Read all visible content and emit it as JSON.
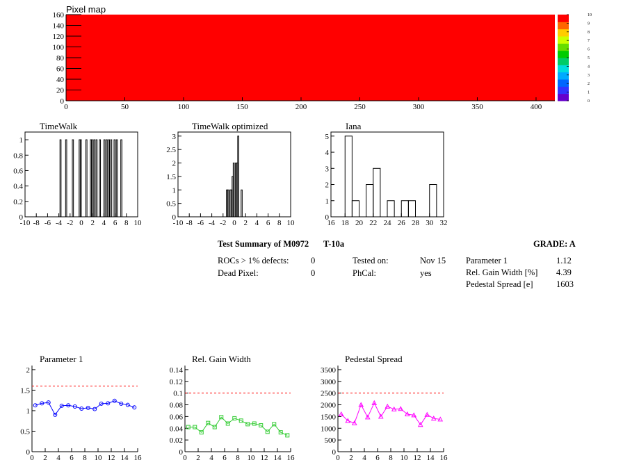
{
  "pixel_map": {
    "title": "Pixel map",
    "fill_color": "#ff0000",
    "palette_colors": [
      "#6600cc",
      "#3333ff",
      "#0066ff",
      "#00aaff",
      "#00dddd",
      "#00cc66",
      "#00cc00",
      "#66dd00",
      "#ccff00",
      "#ffcc00",
      "#ff6600",
      "#ff0000"
    ]
  },
  "summary": {
    "title": "Test Summary of M0972",
    "test": "T-10a",
    "grade": "GRADE:  A",
    "rows_left": [
      {
        "label": "ROCs > 1% defects:",
        "value": "0"
      },
      {
        "label": "Dead Pixel:",
        "value": "0"
      }
    ],
    "rows_mid": [
      {
        "label": "Tested on:",
        "value": "Nov 15"
      },
      {
        "label": "PhCal:",
        "value": "yes"
      }
    ],
    "rows_right": [
      {
        "label": "Parameter 1",
        "value": "1.12"
      },
      {
        "label": "Rel. Gain Width [%]",
        "value": "4.39"
      },
      {
        "label": "Pedestal Spread [e]",
        "value": "1603"
      }
    ]
  },
  "chart_data": [
    {
      "type": "heatmap",
      "title": "Pixel map",
      "xlim": [
        0,
        416
      ],
      "ylim": [
        0,
        160
      ],
      "xticks": [
        0,
        50,
        100,
        150,
        200,
        250,
        300,
        350,
        400
      ],
      "yticks": [
        0,
        20,
        40,
        60,
        80,
        100,
        120,
        140,
        160
      ],
      "uniform_value": 10,
      "color_scale": {
        "min": 0,
        "max": 10,
        "ticks": [
          0,
          1,
          2,
          3,
          4,
          5,
          6,
          7,
          8,
          9,
          10
        ]
      }
    },
    {
      "type": "bar",
      "title": "TimeWalk",
      "xlim": [
        -10,
        10
      ],
      "ylim": [
        0,
        1.1
      ],
      "xticks": [
        -10,
        -8,
        -6,
        -4,
        -2,
        0,
        2,
        4,
        6,
        8,
        10
      ],
      "yticks": [
        0,
        0.2,
        0.4,
        0.6,
        0.8,
        1
      ],
      "ytick_labels": [
        "0",
        "0.2",
        "0.4",
        "0.6",
        "0.8",
        "1"
      ],
      "bin_width": 0.2,
      "bins": [
        [
          -3.8,
          1
        ],
        [
          -2.8,
          1
        ],
        [
          -1.6,
          1
        ],
        [
          -0.4,
          1
        ],
        [
          -0.2,
          1
        ],
        [
          0.8,
          1
        ],
        [
          1.6,
          1
        ],
        [
          1.8,
          1
        ],
        [
          2.2,
          1
        ],
        [
          2.6,
          1
        ],
        [
          3.2,
          1
        ],
        [
          4.0,
          1
        ],
        [
          4.4,
          1
        ],
        [
          4.8,
          1
        ],
        [
          5.2,
          1
        ],
        [
          5.8,
          1
        ],
        [
          6.2,
          1
        ],
        [
          7.0,
          1
        ]
      ]
    },
    {
      "type": "bar",
      "title": "TimeWalk optimized",
      "xlim": [
        -10,
        10
      ],
      "ylim": [
        0,
        3.15
      ],
      "xticks": [
        -10,
        -8,
        -6,
        -4,
        -2,
        0,
        2,
        4,
        6,
        8,
        10
      ],
      "yticks": [
        0,
        0.5,
        1,
        1.5,
        2,
        2.5,
        3
      ],
      "ytick_labels": [
        "0",
        "0.5",
        "1",
        "1.5",
        "2",
        "2.5",
        "3"
      ],
      "bin_width": 0.2,
      "bins": [
        [
          -1.4,
          1
        ],
        [
          -1.2,
          1
        ],
        [
          -0.8,
          1
        ],
        [
          -0.6,
          1
        ],
        [
          -0.4,
          1.5
        ],
        [
          -0.2,
          2
        ],
        [
          0.2,
          2
        ],
        [
          0.4,
          2
        ],
        [
          0.6,
          3
        ],
        [
          1.2,
          1
        ]
      ]
    },
    {
      "type": "bar",
      "title": "Iana",
      "xlim": [
        16,
        32
      ],
      "ylim": [
        0,
        5.25
      ],
      "xticks": [
        16,
        18,
        20,
        22,
        24,
        26,
        28,
        30,
        32
      ],
      "yticks": [
        0,
        1,
        2,
        3,
        4,
        5
      ],
      "ytick_labels": [
        "0",
        "1",
        "2",
        "3",
        "4",
        "5"
      ],
      "bin_width": 1,
      "bins": [
        [
          18,
          5
        ],
        [
          19,
          1
        ],
        [
          20,
          0
        ],
        [
          21,
          2
        ],
        [
          22,
          3
        ],
        [
          23,
          0
        ],
        [
          24,
          1
        ],
        [
          25,
          0
        ],
        [
          26,
          1
        ],
        [
          27,
          1
        ],
        [
          28,
          0
        ],
        [
          29,
          0
        ],
        [
          30,
          2
        ]
      ]
    },
    {
      "type": "line",
      "title": "Parameter 1",
      "xlim": [
        0,
        16
      ],
      "ylim": [
        0,
        2.1
      ],
      "xticks": [
        0,
        2,
        4,
        6,
        8,
        10,
        12,
        14,
        16
      ],
      "yticks": [
        0,
        0.5,
        1,
        1.5,
        2
      ],
      "ytick_labels": [
        "0",
        "0.5",
        "1",
        "1.5",
        "2"
      ],
      "threshold": 1.6,
      "marker": "circle",
      "color": "#0000ff",
      "x": [
        0.5,
        1.5,
        2.5,
        3.5,
        4.5,
        5.5,
        6.5,
        7.5,
        8.5,
        9.5,
        10.5,
        11.5,
        12.5,
        13.5,
        14.5,
        15.5
      ],
      "y": [
        1.13,
        1.18,
        1.2,
        0.9,
        1.12,
        1.13,
        1.1,
        1.05,
        1.07,
        1.04,
        1.17,
        1.18,
        1.24,
        1.17,
        1.14,
        1.08
      ]
    },
    {
      "type": "line",
      "title": "Rel. Gain Width",
      "xlim": [
        0,
        16
      ],
      "ylim": [
        0,
        0.147
      ],
      "xticks": [
        0,
        2,
        4,
        6,
        8,
        10,
        12,
        14,
        16
      ],
      "yticks": [
        0,
        0.02,
        0.04,
        0.06,
        0.08,
        0.1,
        0.12,
        0.14
      ],
      "ytick_labels": [
        "0",
        "0.02",
        "0.04",
        "0.06",
        "0.08",
        "0.1",
        "0.12",
        "0.14"
      ],
      "threshold": 0.1,
      "marker": "square",
      "color": "#33cc33",
      "x": [
        0.5,
        1.5,
        2.5,
        3.5,
        4.5,
        5.5,
        6.5,
        7.5,
        8.5,
        9.5,
        10.5,
        11.5,
        12.5,
        13.5,
        14.5,
        15.5
      ],
      "y": [
        0.042,
        0.042,
        0.033,
        0.049,
        0.042,
        0.059,
        0.048,
        0.057,
        0.053,
        0.047,
        0.048,
        0.045,
        0.034,
        0.047,
        0.033,
        0.028
      ]
    },
    {
      "type": "line",
      "title": "Pedestal Spread",
      "xlim": [
        0,
        16
      ],
      "ylim": [
        0,
        3675
      ],
      "xticks": [
        0,
        2,
        4,
        6,
        8,
        10,
        12,
        14,
        16
      ],
      "yticks": [
        0,
        500,
        1000,
        1500,
        2000,
        2500,
        3000,
        3500
      ],
      "ytick_labels": [
        "0",
        "500",
        "1000",
        "1500",
        "2000",
        "2500",
        "3000",
        "3500"
      ],
      "threshold": 2500,
      "marker": "triangle",
      "color": "#ff00ff",
      "x": [
        0.5,
        1.5,
        2.5,
        3.5,
        4.5,
        5.5,
        6.5,
        7.5,
        8.5,
        9.5,
        10.5,
        11.5,
        12.5,
        13.5,
        14.5,
        15.5
      ],
      "y": [
        1600,
        1320,
        1220,
        2000,
        1470,
        2080,
        1500,
        1930,
        1810,
        1830,
        1600,
        1560,
        1150,
        1580,
        1420,
        1380
      ]
    }
  ]
}
